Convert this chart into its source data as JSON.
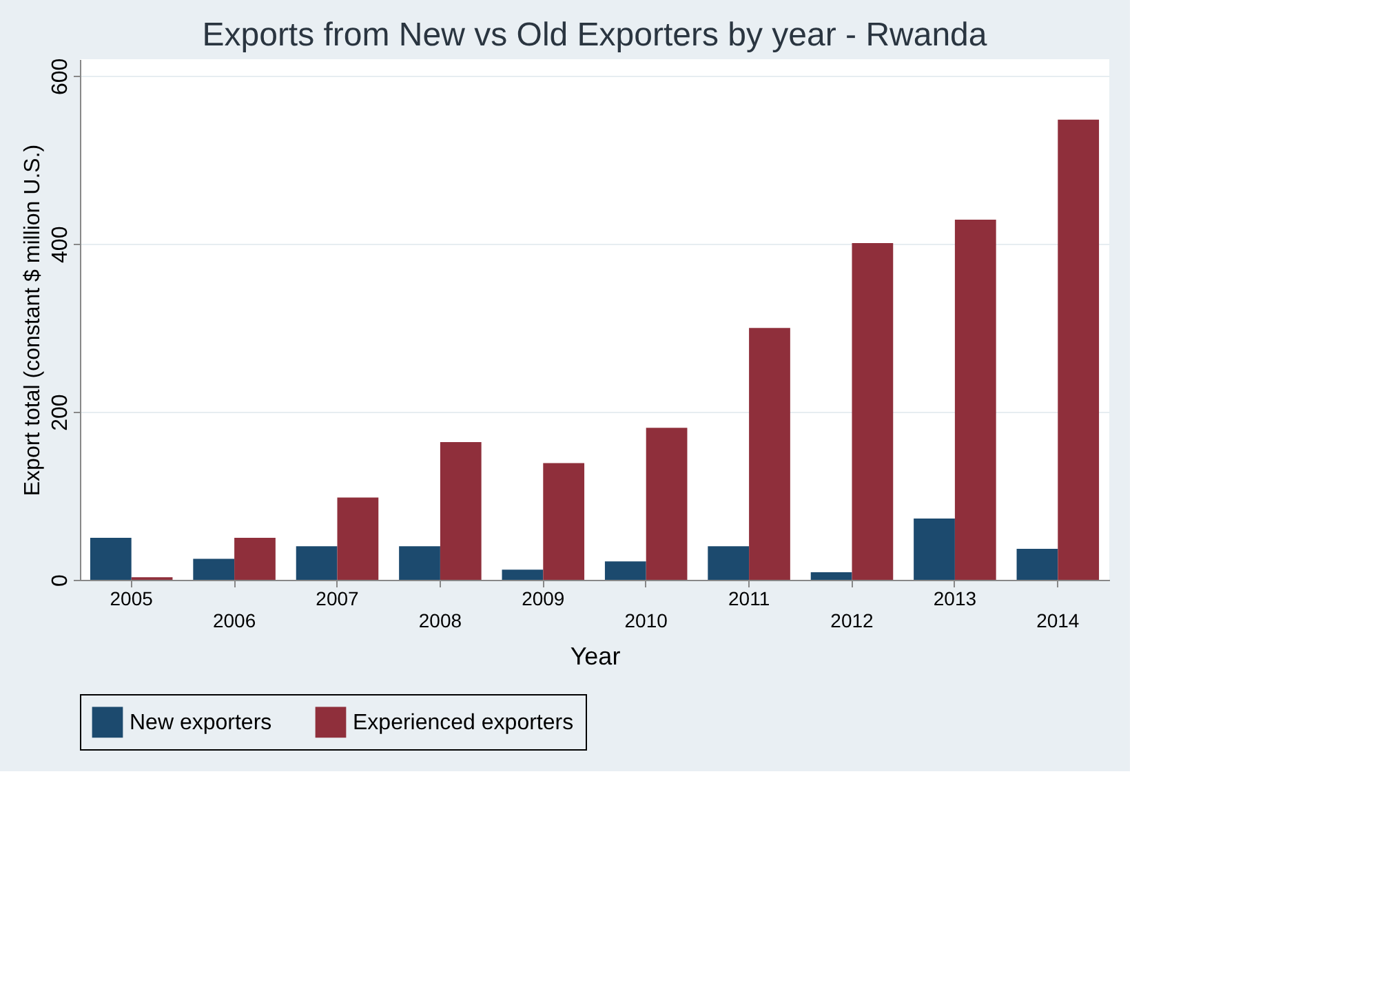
{
  "chart_data": {
    "type": "bar",
    "title": "Exports from New vs Old Exporters by year - Rwanda",
    "xlabel": "Year",
    "ylabel": "Export total (constant $ million U.S.)",
    "categories": [
      "2005",
      "2006",
      "2007",
      "2008",
      "2009",
      "2010",
      "2011",
      "2012",
      "2013",
      "2014"
    ],
    "series": [
      {
        "name": "New exporters",
        "color": "#1c4a6e",
        "values": [
          50,
          25,
          40,
          40,
          12,
          22,
          40,
          9,
          73,
          37
        ]
      },
      {
        "name": "Experienced exporters",
        "color": "#8f2f3b",
        "values": [
          3,
          50,
          98,
          164,
          139,
          181,
          300,
          401,
          429,
          548
        ]
      }
    ],
    "ylim": [
      0,
      620
    ],
    "yticks": [
      0,
      200,
      400,
      600
    ],
    "grid": "y",
    "legend": "bottom"
  }
}
